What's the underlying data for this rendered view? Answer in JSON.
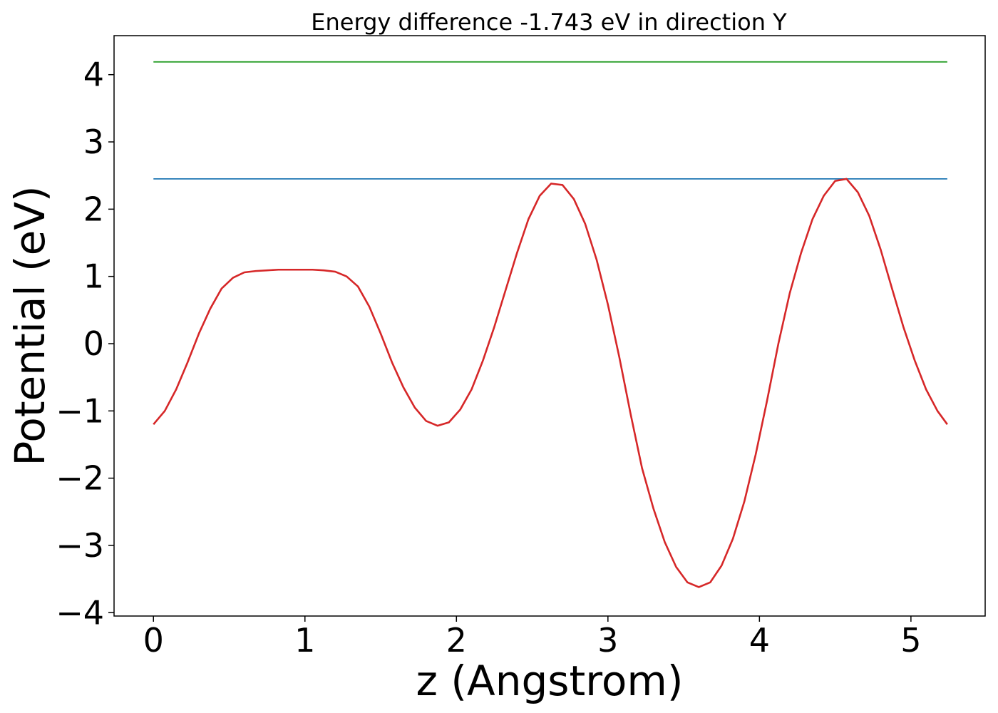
{
  "chart_data": {
    "type": "line",
    "title": "Energy difference -1.743 eV in direction Y",
    "xlabel": "z (Angstrom)",
    "ylabel": "Potential (eV)",
    "xlim": [
      -0.26,
      5.49
    ],
    "ylim": [
      -4.05,
      4.58
    ],
    "xticks": [
      0,
      1,
      2,
      3,
      4,
      5
    ],
    "xtick_labels": [
      "0",
      "1",
      "2",
      "3",
      "4",
      "5"
    ],
    "yticks": [
      -4,
      -3,
      -2,
      -1,
      0,
      1,
      2,
      3,
      4
    ],
    "ytick_labels": [
      "−4",
      "−3",
      "−2",
      "−1",
      "0",
      "1",
      "2",
      "3",
      "4"
    ],
    "grid": false,
    "series": [
      {
        "color": "#2ca02c",
        "x": [
          0,
          5.24
        ],
        "y": [
          4.19,
          4.19
        ]
      },
      {
        "color": "#1f77b4",
        "x": [
          0,
          5.24
        ],
        "y": [
          2.45,
          2.45
        ]
      },
      {
        "color": "#d62728",
        "x": [
          0.0,
          0.075,
          0.15,
          0.225,
          0.3,
          0.375,
          0.45,
          0.525,
          0.6,
          0.675,
          0.75,
          0.825,
          0.9,
          0.975,
          1.05,
          1.125,
          1.2,
          1.275,
          1.35,
          1.425,
          1.5,
          1.575,
          1.65,
          1.725,
          1.8,
          1.875,
          1.95,
          2.025,
          2.1,
          2.175,
          2.25,
          2.325,
          2.4,
          2.475,
          2.55,
          2.625,
          2.7,
          2.775,
          2.85,
          2.925,
          3.0,
          3.075,
          3.15,
          3.225,
          3.3,
          3.375,
          3.45,
          3.525,
          3.6,
          3.675,
          3.75,
          3.825,
          3.9,
          3.975,
          4.05,
          4.125,
          4.2,
          4.275,
          4.35,
          4.425,
          4.5,
          4.575,
          4.65,
          4.725,
          4.8,
          4.875,
          4.95,
          5.025,
          5.1,
          5.175,
          5.24
        ],
        "y": [
          -1.2,
          -1.0,
          -0.68,
          -0.28,
          0.15,
          0.52,
          0.82,
          0.98,
          1.06,
          1.08,
          1.09,
          1.1,
          1.1,
          1.1,
          1.1,
          1.09,
          1.07,
          1.0,
          0.85,
          0.55,
          0.15,
          -0.28,
          -0.65,
          -0.95,
          -1.15,
          -1.22,
          -1.17,
          -0.98,
          -0.68,
          -0.25,
          0.25,
          0.8,
          1.35,
          1.85,
          2.2,
          2.38,
          2.36,
          2.15,
          1.78,
          1.25,
          0.58,
          -0.2,
          -1.05,
          -1.85,
          -2.45,
          -2.95,
          -3.32,
          -3.55,
          -3.62,
          -3.55,
          -3.3,
          -2.9,
          -2.35,
          -1.65,
          -0.85,
          0.0,
          0.75,
          1.35,
          1.85,
          2.2,
          2.42,
          2.45,
          2.25,
          1.9,
          1.4,
          0.82,
          0.25,
          -0.25,
          -0.68,
          -1.0,
          -1.2
        ]
      }
    ]
  }
}
